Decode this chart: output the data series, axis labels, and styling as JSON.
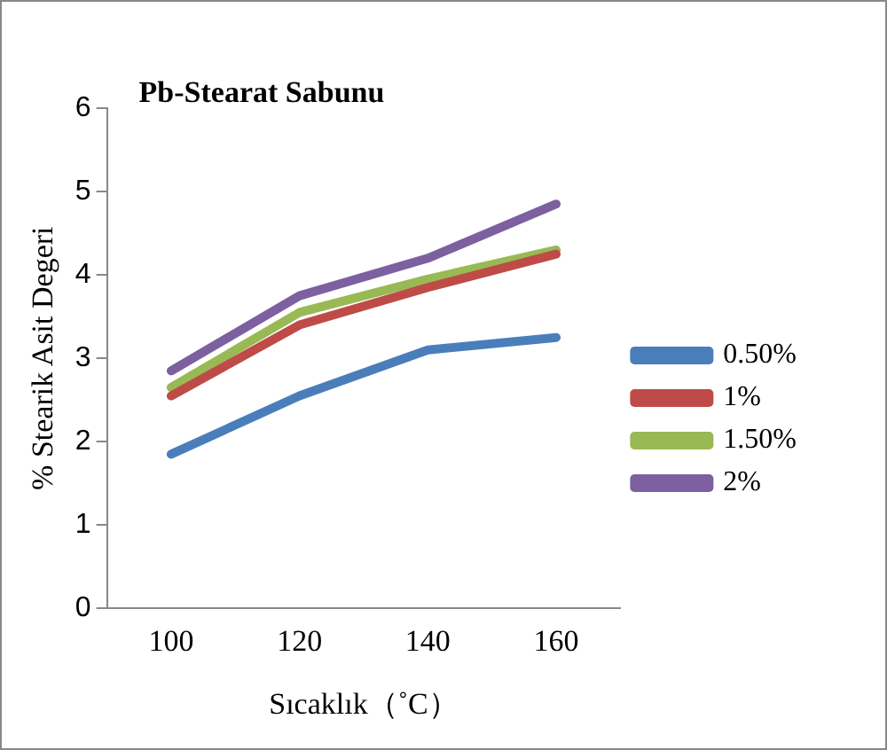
{
  "chart_data": {
    "type": "line",
    "title": "Pb-Stearat Sabunu",
    "xlabel": "Sıcaklık（˚C）",
    "ylabel": "% Stearik Asit Degeri",
    "categories": [
      "100",
      "120",
      "140",
      "160"
    ],
    "series": [
      {
        "name": "0.50%",
        "color": "#4a7ebb",
        "values": [
          1.85,
          2.55,
          3.1,
          3.25
        ]
      },
      {
        "name": "1%",
        "color": "#be4b48",
        "values": [
          2.55,
          3.4,
          3.85,
          4.25
        ]
      },
      {
        "name": "1.50%",
        "color": "#98b954",
        "values": [
          2.65,
          3.55,
          3.95,
          4.3
        ]
      },
      {
        "name": "2%",
        "color": "#7d60a0",
        "values": [
          2.85,
          3.75,
          4.2,
          4.85
        ]
      }
    ],
    "ylim": [
      0,
      6
    ],
    "yticks": [
      0,
      1,
      2,
      3,
      4,
      5,
      6
    ],
    "grid": false,
    "legend": "right",
    "marker": "none",
    "line_style": "solid"
  }
}
